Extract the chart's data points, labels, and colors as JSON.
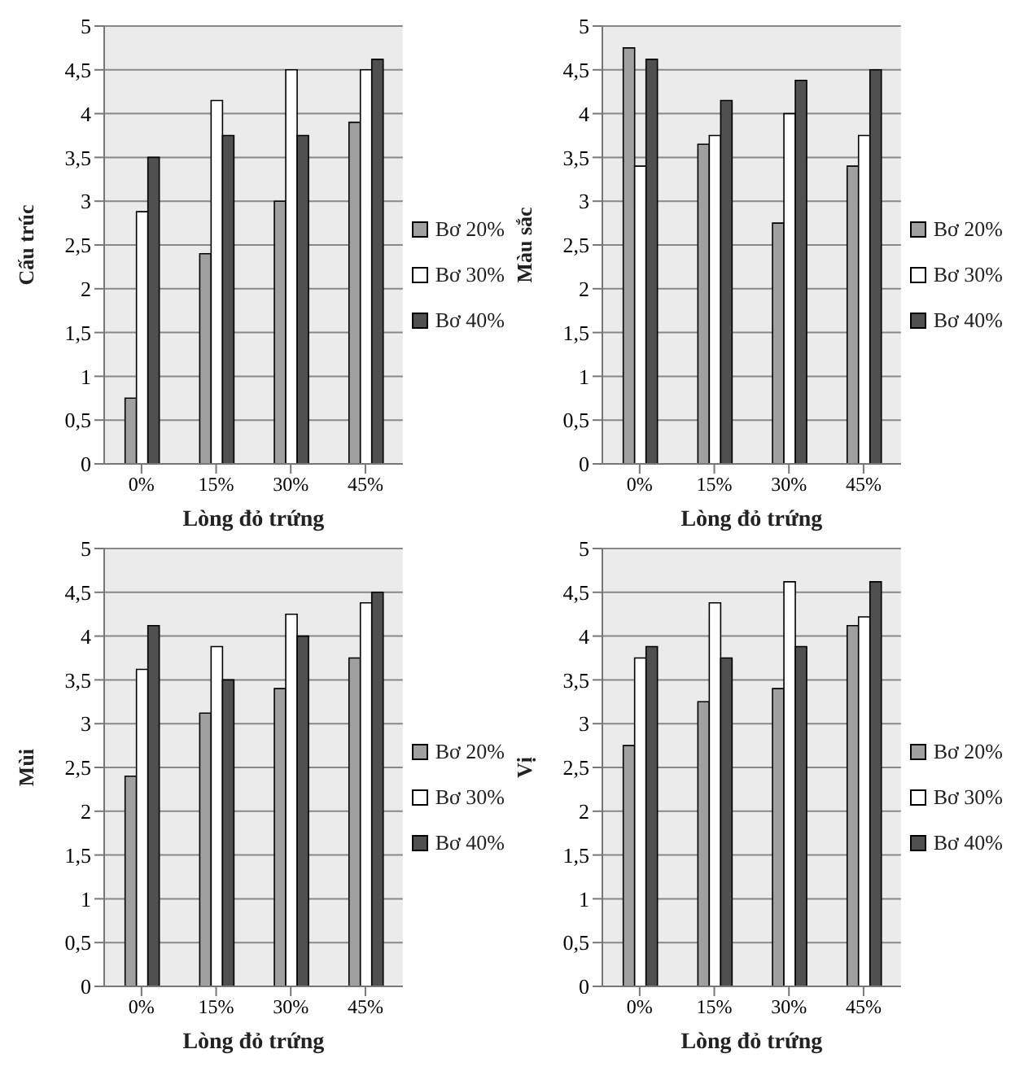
{
  "chart_data": [
    {
      "type": "bar",
      "xlabel": "Lòng  đỏ trứng",
      "ylabel": "Cấu trúc",
      "categories": [
        "0%",
        "15%",
        "30%",
        "45%"
      ],
      "series": [
        {
          "name": "Bơ 20%",
          "color": "#a0a0a0",
          "values": [
            0.75,
            2.4,
            3.0,
            3.9
          ]
        },
        {
          "name": "Bơ 30%",
          "color": "#ffffff",
          "values": [
            2.88,
            4.15,
            4.5,
            4.5
          ]
        },
        {
          "name": "Bơ 40%",
          "color": "#505050",
          "values": [
            3.5,
            3.75,
            3.75,
            4.62
          ]
        }
      ],
      "ylim": [
        0,
        5
      ],
      "yticks": [
        0,
        {
          "value": 0.5,
          "label": "0,5"
        },
        1,
        {
          "value": 1.5,
          "label": "1,5"
        },
        2,
        {
          "value": 2.5,
          "label": "2,5"
        },
        3,
        {
          "value": 3.5,
          "label": "3,5"
        },
        4,
        {
          "value": 4.5,
          "label": "4,5"
        },
        5
      ],
      "grid": "y",
      "legend": "right"
    },
    {
      "type": "bar",
      "xlabel": "Lòng  đỏ trứng",
      "ylabel": "Màu sắc",
      "categories": [
        "0%",
        "15%",
        "30%",
        "45%"
      ],
      "series": [
        {
          "name": "Bơ 20%",
          "color": "#a0a0a0",
          "values": [
            4.75,
            3.65,
            2.75,
            3.4
          ]
        },
        {
          "name": "Bơ 30%",
          "color": "#ffffff",
          "values": [
            3.4,
            3.75,
            4.0,
            3.75
          ]
        },
        {
          "name": "Bơ 40%",
          "color": "#505050",
          "values": [
            4.62,
            4.15,
            4.38,
            4.5
          ]
        }
      ],
      "ylim": [
        0,
        5
      ],
      "yticks": [
        0,
        {
          "value": 0.5,
          "label": "0,5"
        },
        1,
        {
          "value": 1.5,
          "label": "1,5"
        },
        2,
        {
          "value": 2.5,
          "label": "2,5"
        },
        3,
        {
          "value": 3.5,
          "label": "3,5"
        },
        4,
        {
          "value": 4.5,
          "label": "4,5"
        },
        5
      ],
      "grid": "y",
      "legend": "right"
    },
    {
      "type": "bar",
      "xlabel": "Lòng đỏ trứng",
      "ylabel": "Mùi",
      "categories": [
        "0%",
        "15%",
        "30%",
        "45%"
      ],
      "series": [
        {
          "name": "Bơ 20%",
          "color": "#a0a0a0",
          "values": [
            2.4,
            3.12,
            3.4,
            3.75
          ]
        },
        {
          "name": "Bơ 30%",
          "color": "#ffffff",
          "values": [
            3.62,
            3.88,
            4.25,
            4.38
          ]
        },
        {
          "name": "Bơ 40%",
          "color": "#505050",
          "values": [
            4.12,
            3.5,
            4.0,
            4.5
          ]
        }
      ],
      "ylim": [
        0,
        5
      ],
      "yticks": [
        0,
        {
          "value": 0.5,
          "label": "0,5"
        },
        1,
        {
          "value": 1.5,
          "label": "1,5"
        },
        2,
        {
          "value": 2.5,
          "label": "2,5"
        },
        3,
        {
          "value": 3.5,
          "label": "3,5"
        },
        4,
        {
          "value": 4.5,
          "label": "4,5"
        },
        5
      ],
      "grid": "y",
      "legend": "right"
    },
    {
      "type": "bar",
      "xlabel": "Lòng đỏ trứng",
      "ylabel": "Vị",
      "categories": [
        "0%",
        "15%",
        "30%",
        "45%"
      ],
      "series": [
        {
          "name": "Bơ 20%",
          "color": "#a0a0a0",
          "values": [
            2.75,
            3.25,
            3.4,
            4.12
          ]
        },
        {
          "name": "Bơ 30%",
          "color": "#ffffff",
          "values": [
            3.75,
            4.38,
            4.62,
            4.22
          ]
        },
        {
          "name": "Bơ 40%",
          "color": "#505050",
          "values": [
            3.88,
            3.75,
            3.88,
            4.62
          ]
        }
      ],
      "ylim": [
        0,
        5
      ],
      "yticks": [
        0,
        {
          "value": 0.5,
          "label": "0,5"
        },
        1,
        {
          "value": 1.5,
          "label": "1,5"
        },
        2,
        {
          "value": 2.5,
          "label": "2,5"
        },
        3,
        {
          "value": 3.5,
          "label": "3,5"
        },
        4,
        {
          "value": 4.5,
          "label": "4,5"
        },
        5
      ],
      "grid": "y",
      "legend": "right"
    }
  ]
}
